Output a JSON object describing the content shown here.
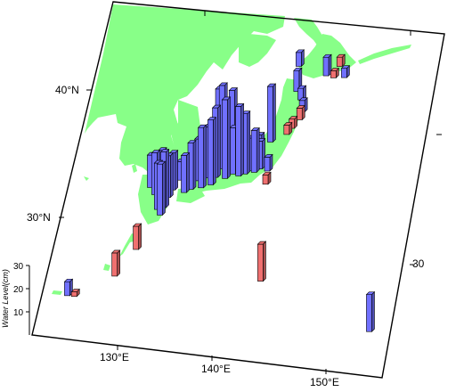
{
  "map": {
    "graticule_labels": {
      "lat": [
        "40°N",
        "30°N"
      ],
      "lon": [
        "130°E",
        "140°E",
        "150°E"
      ],
      "right_edge": [
        "30"
      ]
    },
    "scale": {
      "title": "Water Level(cm)",
      "ticks": [
        "10",
        "20",
        "30"
      ]
    },
    "colors": {
      "land": "#88ff88",
      "rise_bar": "#7070ff",
      "fall_bar": "#f07070",
      "frame": "#000000"
    }
  },
  "stations": [
    {
      "lon": 144.6,
      "lat": 43.0,
      "h": 8,
      "c": "rise"
    },
    {
      "lon": 145.8,
      "lat": 43.8,
      "h": 4,
      "c": "fall"
    },
    {
      "lon": 145.4,
      "lat": 42.9,
      "h": 3,
      "c": "fall"
    },
    {
      "lon": 146.5,
      "lat": 43.0,
      "h": 4,
      "c": "rise"
    },
    {
      "lon": 141.6,
      "lat": 43.5,
      "h": 6,
      "c": "rise"
    },
    {
      "lon": 141.9,
      "lat": 41.6,
      "h": 9,
      "c": "rise"
    },
    {
      "lon": 142.5,
      "lat": 41.0,
      "h": 5,
      "c": "rise"
    },
    {
      "lon": 142.9,
      "lat": 40.1,
      "h": 5,
      "c": "rise"
    },
    {
      "lon": 142.8,
      "lat": 39.5,
      "h": 5,
      "c": "fall"
    },
    {
      "lon": 142.2,
      "lat": 38.8,
      "h": 4,
      "c": "fall"
    },
    {
      "lon": 141.8,
      "lat": 38.3,
      "h": 4,
      "c": "fall"
    },
    {
      "lon": 140.3,
      "lat": 37.6,
      "h": 24,
      "c": "rise"
    },
    {
      "lon": 139.5,
      "lat": 36.3,
      "h": 10,
      "c": "rise"
    },
    {
      "lon": 140.6,
      "lat": 35.4,
      "h": 6,
      "c": "rise"
    },
    {
      "lon": 140.7,
      "lat": 34.4,
      "h": 4,
      "c": "fall"
    },
    {
      "lon": 139.3,
      "lat": 35.2,
      "h": 18,
      "c": "rise"
    },
    {
      "lon": 138.9,
      "lat": 35.3,
      "h": 14,
      "c": "rise"
    },
    {
      "lon": 139.8,
      "lat": 35.5,
      "h": 12,
      "c": "rise"
    },
    {
      "lon": 138.4,
      "lat": 35.0,
      "h": 26,
      "c": "rise"
    },
    {
      "lon": 137.8,
      "lat": 34.8,
      "h": 30,
      "c": "rise"
    },
    {
      "lon": 137.2,
      "lat": 34.9,
      "h": 20,
      "c": "rise"
    },
    {
      "lon": 136.9,
      "lat": 35.6,
      "h": 32,
      "c": "rise"
    },
    {
      "lon": 136.5,
      "lat": 34.5,
      "h": 34,
      "c": "rise"
    },
    {
      "lon": 136.0,
      "lat": 35.2,
      "h": 36,
      "c": "rise"
    },
    {
      "lon": 135.5,
      "lat": 35.6,
      "h": 32,
      "c": "rise"
    },
    {
      "lon": 135.5,
      "lat": 34.5,
      "h": 30,
      "c": "rise"
    },
    {
      "lon": 135.2,
      "lat": 33.9,
      "h": 28,
      "c": "rise"
    },
    {
      "lon": 134.7,
      "lat": 34.4,
      "h": 22,
      "c": "rise"
    },
    {
      "lon": 134.3,
      "lat": 33.6,
      "h": 26,
      "c": "rise"
    },
    {
      "lon": 133.8,
      "lat": 34.1,
      "h": 18,
      "c": "rise"
    },
    {
      "lon": 133.3,
      "lat": 33.4,
      "h": 20,
      "c": "rise"
    },
    {
      "lon": 132.7,
      "lat": 33.1,
      "h": 16,
      "c": "rise"
    },
    {
      "lon": 132.0,
      "lat": 34.0,
      "h": 8,
      "c": "rise"
    },
    {
      "lon": 131.5,
      "lat": 33.2,
      "h": 16,
      "c": "rise"
    },
    {
      "lon": 131.2,
      "lat": 32.6,
      "h": 18,
      "c": "rise"
    },
    {
      "lon": 131.0,
      "lat": 31.8,
      "h": 24,
      "c": "rise"
    },
    {
      "lon": 130.8,
      "lat": 31.2,
      "h": 22,
      "c": "rise"
    },
    {
      "lon": 130.4,
      "lat": 31.6,
      "h": 20,
      "c": "rise"
    },
    {
      "lon": 129.8,
      "lat": 32.7,
      "h": 18,
      "c": "rise"
    },
    {
      "lon": 129.2,
      "lat": 33.2,
      "h": 14,
      "c": "rise"
    },
    {
      "lon": 130.1,
      "lat": 34.0,
      "h": 12,
      "c": "rise"
    },
    {
      "lon": 130.8,
      "lat": 33.9,
      "h": 10,
      "c": "rise"
    },
    {
      "lon": 129.2,
      "lat": 28.4,
      "h": 10,
      "c": "fall"
    },
    {
      "lon": 127.7,
      "lat": 26.2,
      "h": 10,
      "c": "fall"
    },
    {
      "lon": 123.5,
      "lat": 24.3,
      "h": 6,
      "c": "rise"
    },
    {
      "lon": 124.2,
      "lat": 24.3,
      "h": 2,
      "c": "fall"
    },
    {
      "lon": 142.2,
      "lat": 27.1,
      "h": 16,
      "c": "fall"
    },
    {
      "lon": 153.9,
      "lat": 24.3,
      "h": 16,
      "c": "rise"
    }
  ],
  "chart_data": {
    "type": "3d-bar-map",
    "x": "longitude (°E)",
    "y": "latitude (°N)",
    "z_label": "Water Level(cm)",
    "z_ticks": [
      10,
      20,
      30
    ],
    "lat_range": [
      21,
      47
    ],
    "lon_range": [
      121,
      156
    ],
    "series": [
      {
        "color": "#7070ff"
      },
      {
        "color": "#f07070"
      }
    ]
  }
}
